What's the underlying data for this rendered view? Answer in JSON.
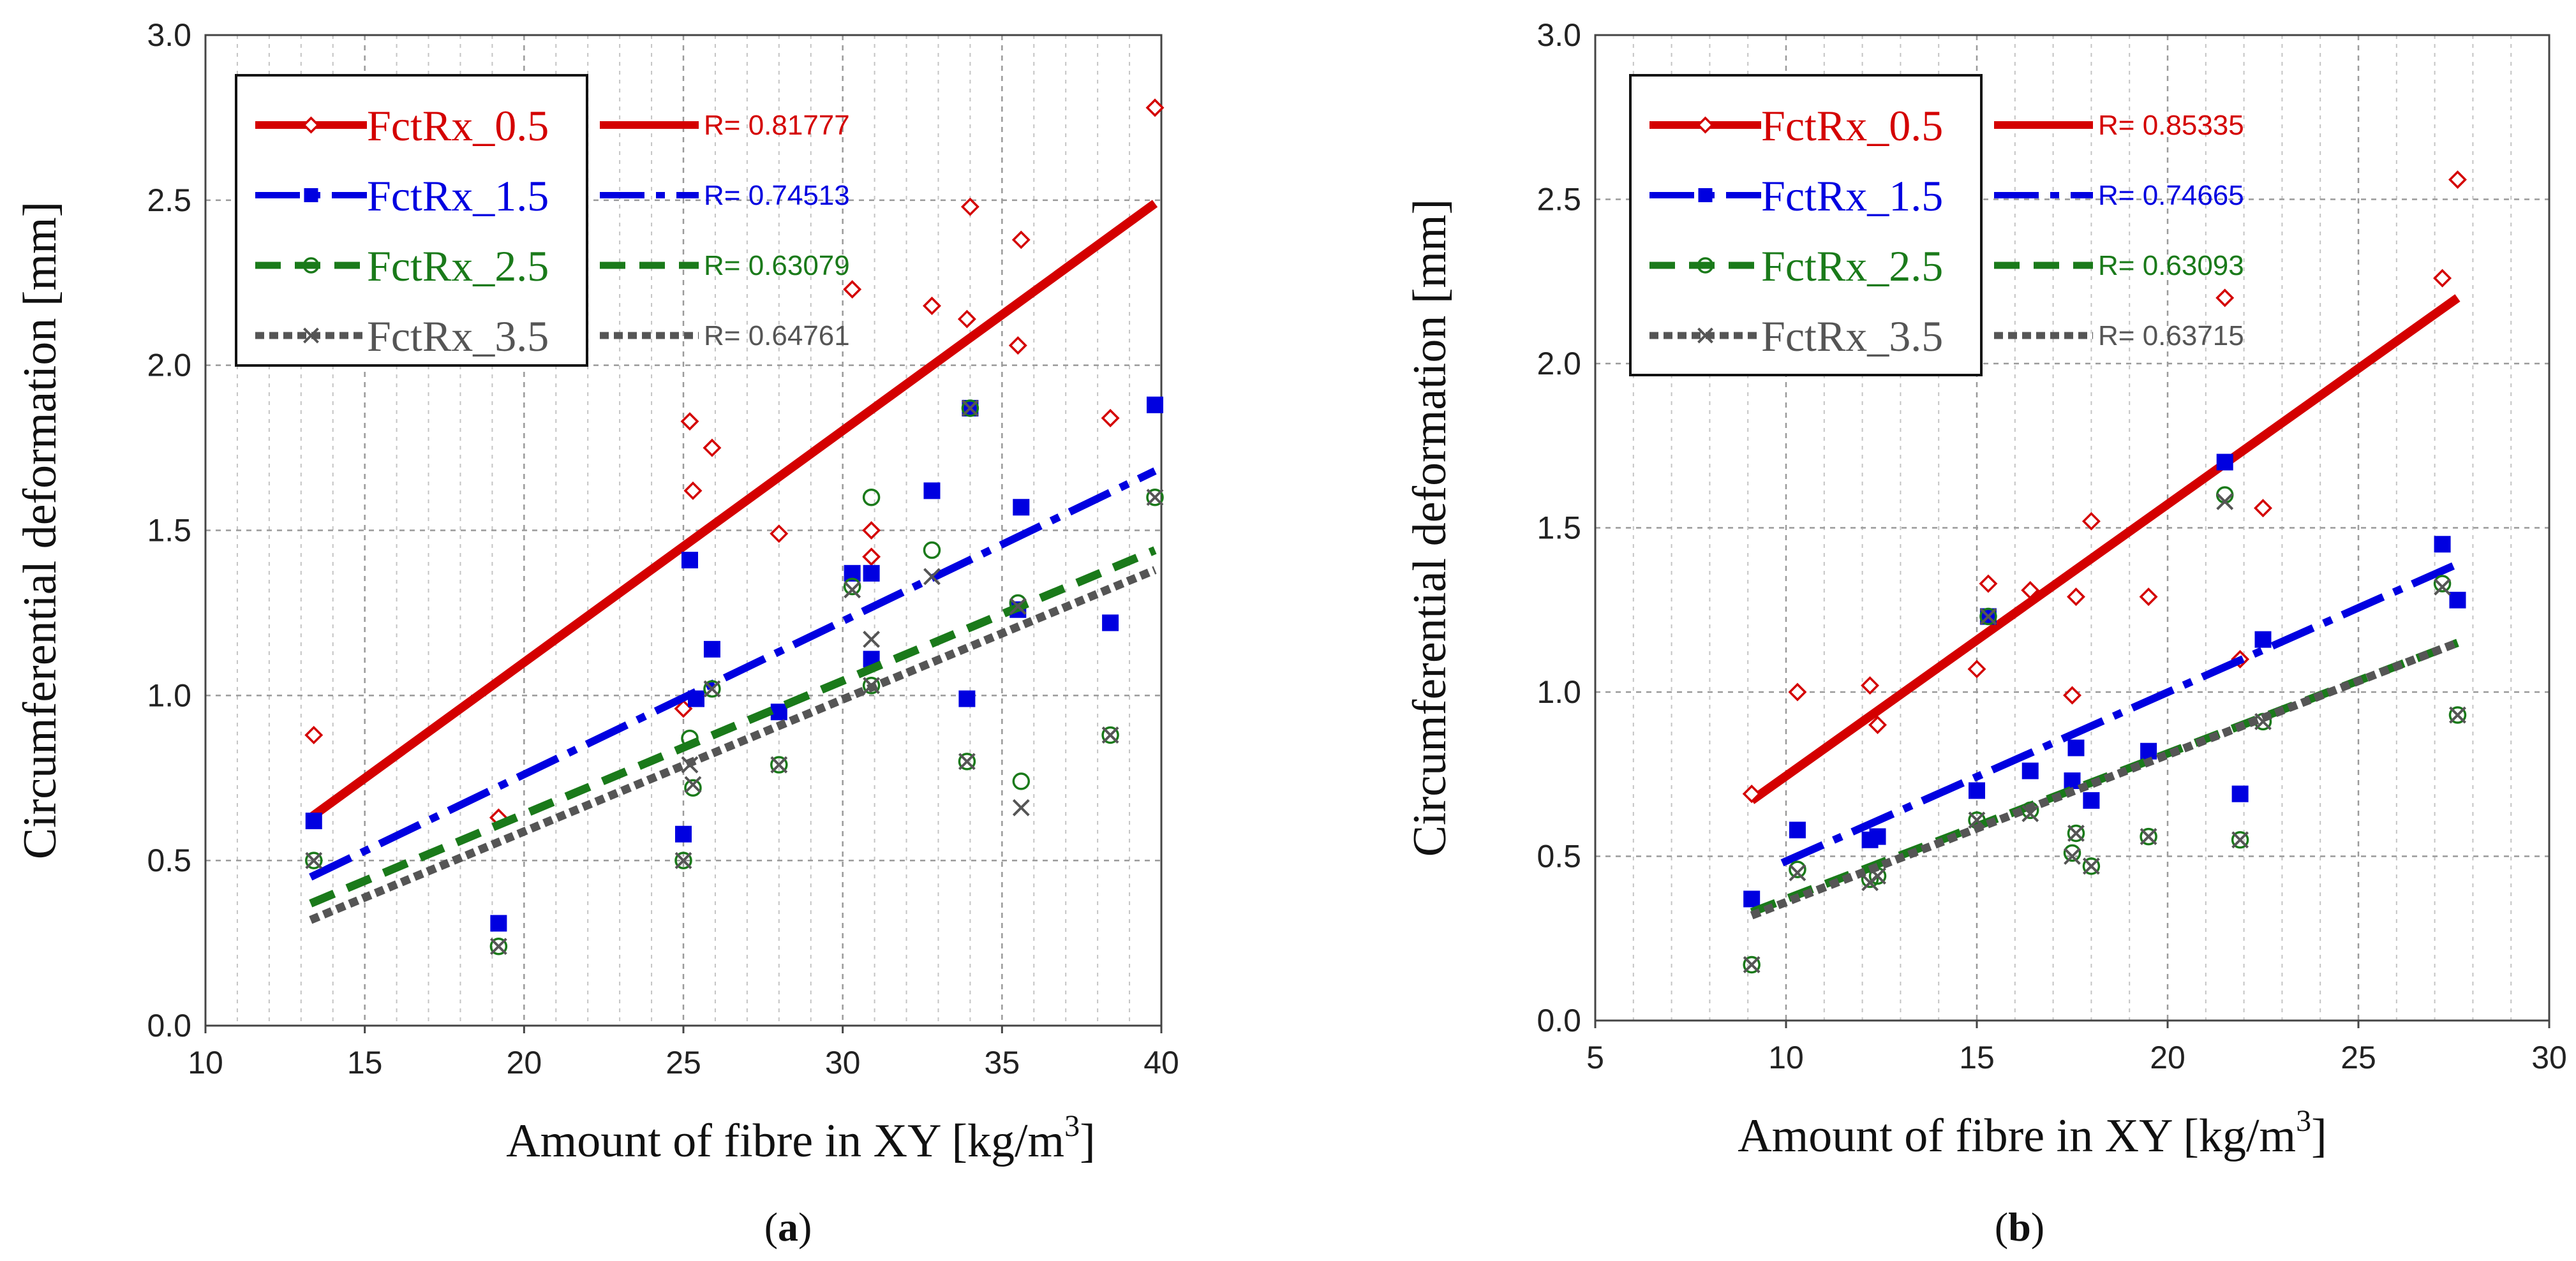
{
  "chart_data": [
    {
      "type": "scatter",
      "panel_label": "(a)",
      "panel_letter": "a",
      "xlabel": "Amount of fibre in XY [kg/m3]",
      "ylabel": "Circumferential deformation [mm]",
      "xlim": [
        10,
        40
      ],
      "ylim": [
        0,
        3
      ],
      "xticks": [
        10,
        15,
        20,
        25,
        30,
        35,
        40
      ],
      "yticks": [
        0.0,
        0.5,
        1.0,
        1.5,
        2.0,
        2.5,
        3.0
      ],
      "grid": true,
      "legend_position": "top-left",
      "series": [
        {
          "name": "FctRx_0.5",
          "color": "#d40000",
          "marker": "diamond-open",
          "line": "solid",
          "r_label": "R= 0.81777",
          "trend": [
            [
              13.3,
              0.63
            ],
            [
              39.8,
              2.49
            ]
          ],
          "points": [
            [
              13.4,
              0.88
            ],
            [
              19.2,
              0.63
            ],
            [
              25.0,
              0.96
            ],
            [
              25.2,
              1.83
            ],
            [
              25.3,
              1.62
            ],
            [
              25.9,
              1.75
            ],
            [
              28.0,
              1.49
            ],
            [
              30.3,
              2.23
            ],
            [
              30.9,
              1.42
            ],
            [
              30.9,
              1.5
            ],
            [
              32.8,
              2.18
            ],
            [
              33.9,
              2.14
            ],
            [
              34.0,
              2.48
            ],
            [
              35.5,
              2.06
            ],
            [
              35.6,
              2.38
            ],
            [
              38.4,
              1.84
            ],
            [
              39.8,
              2.78
            ]
          ]
        },
        {
          "name": "FctRx_1.5",
          "color": "#0000e0",
          "marker": "square-filled",
          "line": "dash-dot",
          "r_label": "R= 0.74513",
          "trend": [
            [
              13.3,
              0.45
            ],
            [
              39.8,
              1.68
            ]
          ],
          "points": [
            [
              13.4,
              0.62
            ],
            [
              19.2,
              0.31
            ],
            [
              25.0,
              0.58
            ],
            [
              25.2,
              1.41
            ],
            [
              25.4,
              0.99
            ],
            [
              25.9,
              1.14
            ],
            [
              28.0,
              0.95
            ],
            [
              30.3,
              1.37
            ],
            [
              30.9,
              1.11
            ],
            [
              30.9,
              1.37
            ],
            [
              32.8,
              1.62
            ],
            [
              33.9,
              0.99
            ],
            [
              34.0,
              1.87
            ],
            [
              35.5,
              1.26
            ],
            [
              35.6,
              1.57
            ],
            [
              38.4,
              1.22
            ],
            [
              39.8,
              1.88
            ]
          ]
        },
        {
          "name": "FctRx_2.5",
          "color": "#1a7a1a",
          "marker": "circle-open",
          "line": "dashed",
          "r_label": "R= 0.63079",
          "trend": [
            [
              13.3,
              0.37
            ],
            [
              39.8,
              1.44
            ]
          ],
          "points": [
            [
              13.4,
              0.5
            ],
            [
              19.2,
              0.24
            ],
            [
              25.0,
              0.5
            ],
            [
              25.2,
              0.87
            ],
            [
              25.3,
              0.72
            ],
            [
              25.9,
              1.02
            ],
            [
              28.0,
              0.79
            ],
            [
              30.3,
              1.33
            ],
            [
              30.9,
              1.6
            ],
            [
              30.9,
              1.03
            ],
            [
              32.8,
              1.44
            ],
            [
              33.9,
              0.8
            ],
            [
              34.0,
              1.87
            ],
            [
              35.5,
              1.28
            ],
            [
              35.6,
              0.74
            ],
            [
              38.4,
              0.88
            ],
            [
              39.8,
              1.6
            ]
          ]
        },
        {
          "name": "FctRx_3.5",
          "color": "#555555",
          "marker": "x",
          "line": "dotted",
          "r_label": "R= 0.64761",
          "trend": [
            [
              13.3,
              0.32
            ],
            [
              39.8,
              1.38
            ]
          ],
          "points": [
            [
              13.4,
              0.5
            ],
            [
              19.2,
              0.24
            ],
            [
              25.0,
              0.5
            ],
            [
              25.2,
              0.79
            ],
            [
              25.3,
              0.73
            ],
            [
              25.9,
              1.02
            ],
            [
              28.0,
              0.79
            ],
            [
              30.3,
              1.32
            ],
            [
              30.9,
              1.17
            ],
            [
              30.9,
              1.03
            ],
            [
              32.8,
              1.36
            ],
            [
              33.9,
              0.8
            ],
            [
              34.0,
              1.87
            ],
            [
              35.5,
              1.27
            ],
            [
              35.6,
              0.66
            ],
            [
              38.4,
              0.88
            ],
            [
              39.8,
              1.6
            ]
          ]
        }
      ]
    },
    {
      "type": "scatter",
      "panel_label": "(b)",
      "panel_letter": "b",
      "xlabel": "Amount of fibre in XY [kg/m3]",
      "ylabel": "Circumferential deformation [mm]",
      "xlim": [
        5,
        30
      ],
      "ylim": [
        0,
        3
      ],
      "xticks": [
        5,
        10,
        15,
        20,
        25,
        30
      ],
      "yticks": [
        0.0,
        0.5,
        1.0,
        1.5,
        2.0,
        2.5,
        3.0
      ],
      "grid": true,
      "legend_position": "top-left",
      "series": [
        {
          "name": "FctRx_0.5",
          "color": "#d40000",
          "marker": "diamond-open",
          "line": "solid",
          "r_label": "R= 0.85335",
          "trend": [
            [
              9.1,
              0.67
            ],
            [
              27.6,
              2.2
            ]
          ],
          "points": [
            [
              9.1,
              0.69
            ],
            [
              10.3,
              1.0
            ],
            [
              12.2,
              1.02
            ],
            [
              12.4,
              0.9
            ],
            [
              15.0,
              1.07
            ],
            [
              15.3,
              1.33
            ],
            [
              16.4,
              1.31
            ],
            [
              17.5,
              0.99
            ],
            [
              17.6,
              1.29
            ],
            [
              18.0,
              1.52
            ],
            [
              19.5,
              1.29
            ],
            [
              21.5,
              2.2
            ],
            [
              21.9,
              1.1
            ],
            [
              22.5,
              1.56
            ],
            [
              27.2,
              2.26
            ],
            [
              27.6,
              2.56
            ]
          ]
        },
        {
          "name": "FctRx_1.5",
          "color": "#0000e0",
          "marker": "square-filled",
          "line": "dash-dot",
          "r_label": "R= 0.74665",
          "trend": [
            [
              9.9,
              0.48
            ],
            [
              27.6,
              1.39
            ]
          ],
          "points": [
            [
              9.1,
              0.37
            ],
            [
              10.3,
              0.58
            ],
            [
              12.2,
              0.55
            ],
            [
              12.4,
              0.56
            ],
            [
              15.0,
              0.7
            ],
            [
              15.3,
              1.23
            ],
            [
              16.4,
              0.76
            ],
            [
              17.5,
              0.73
            ],
            [
              17.6,
              0.83
            ],
            [
              18.0,
              0.67
            ],
            [
              19.5,
              0.82
            ],
            [
              21.5,
              1.7
            ],
            [
              21.9,
              0.69
            ],
            [
              22.5,
              1.16
            ],
            [
              27.2,
              1.45
            ],
            [
              27.6,
              1.28
            ]
          ]
        },
        {
          "name": "FctRx_2.5",
          "color": "#1a7a1a",
          "marker": "circle-open",
          "line": "dashed",
          "r_label": "R= 0.63093",
          "trend": [
            [
              9.1,
              0.33
            ],
            [
              27.6,
              1.15
            ]
          ],
          "points": [
            [
              9.1,
              0.17
            ],
            [
              10.3,
              0.46
            ],
            [
              12.2,
              0.43
            ],
            [
              12.4,
              0.44
            ],
            [
              15.0,
              0.61
            ],
            [
              15.3,
              1.23
            ],
            [
              16.4,
              0.64
            ],
            [
              17.5,
              0.51
            ],
            [
              17.6,
              0.57
            ],
            [
              18.0,
              0.47
            ],
            [
              19.5,
              0.56
            ],
            [
              21.5,
              1.6
            ],
            [
              21.9,
              0.55
            ],
            [
              22.5,
              0.91
            ],
            [
              27.2,
              1.33
            ],
            [
              27.6,
              0.93
            ]
          ]
        },
        {
          "name": "FctRx_3.5",
          "color": "#555555",
          "marker": "x",
          "line": "dotted",
          "r_label": "R= 0.63715",
          "trend": [
            [
              9.1,
              0.32
            ],
            [
              27.6,
              1.15
            ]
          ],
          "points": [
            [
              9.1,
              0.17
            ],
            [
              10.3,
              0.45
            ],
            [
              12.2,
              0.42
            ],
            [
              12.4,
              0.44
            ],
            [
              15.0,
              0.61
            ],
            [
              15.3,
              1.23
            ],
            [
              16.4,
              0.63
            ],
            [
              17.5,
              0.5
            ],
            [
              17.6,
              0.57
            ],
            [
              18.0,
              0.47
            ],
            [
              19.5,
              0.56
            ],
            [
              21.5,
              1.58
            ],
            [
              21.9,
              0.55
            ],
            [
              22.5,
              0.91
            ],
            [
              27.2,
              1.32
            ],
            [
              27.6,
              0.93
            ]
          ]
        }
      ]
    }
  ]
}
